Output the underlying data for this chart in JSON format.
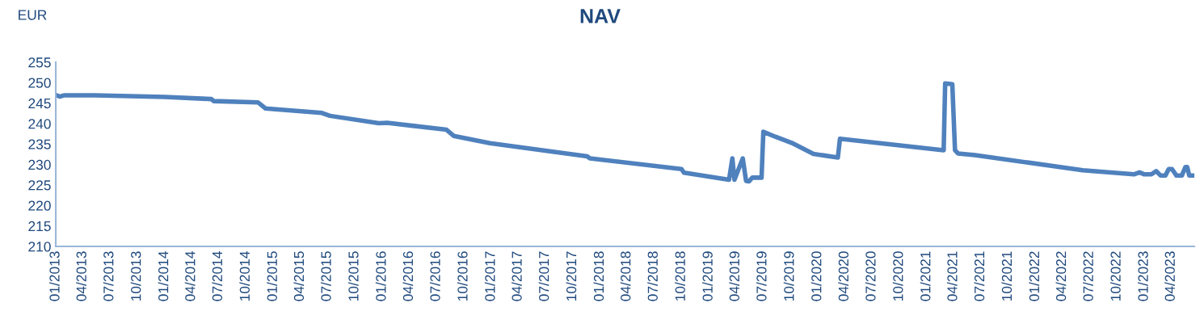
{
  "chart_data": {
    "type": "line",
    "title": "NAV",
    "ylabel": "EUR",
    "x": [
      "2013-01-01",
      "2013-01-14",
      "2013-01-28",
      "2013-05-14",
      "2014-01-01",
      "2014-06-07",
      "2014-06-15",
      "2014-11-10",
      "2014-12-06",
      "2015-06-13",
      "2015-07-10",
      "2015-12-21",
      "2016-01-18",
      "2016-08-04",
      "2016-08-28",
      "2016-12-28",
      "2017-11-19",
      "2017-11-28",
      "2018-10-01",
      "2018-10-10",
      "2019-03-10",
      "2019-03-21",
      "2019-03-28",
      "2019-04-25",
      "2019-05-06",
      "2019-05-16",
      "2019-05-27",
      "2019-06-27",
      "2019-07-03",
      "2019-08-12",
      "2019-10-06",
      "2019-12-18",
      "2020-03-09",
      "2020-03-16",
      "2021-02-27",
      "2021-03-04",
      "2021-03-28",
      "2021-04-06",
      "2021-04-16",
      "2021-06-12",
      "2022-06-09",
      "2022-11-27",
      "2022-12-16",
      "2023-01-01",
      "2023-01-25",
      "2023-02-10",
      "2023-02-25",
      "2023-03-13",
      "2023-03-24",
      "2023-04-04",
      "2023-04-19",
      "2023-05-07",
      "2023-05-19",
      "2023-05-25",
      "2023-06-01",
      "2023-06-15"
    ],
    "series": [
      {
        "color": "#4f81bd",
        "values": [
          247.0,
          246.6,
          246.9,
          246.9,
          246.5,
          246.0,
          245.5,
          245.2,
          243.7,
          242.6,
          241.9,
          240.1,
          240.2,
          238.5,
          237.0,
          235.2,
          232.0,
          231.5,
          228.9,
          228.0,
          226.3,
          231.5,
          226.3,
          231.5,
          226.0,
          225.9,
          226.8,
          226.8,
          238.0,
          236.8,
          235.3,
          232.6,
          231.7,
          236.3,
          233.5,
          249.8,
          249.6,
          233.5,
          232.7,
          232.3,
          228.6,
          227.6,
          228.1,
          227.6,
          227.6,
          228.4,
          227.3,
          227.3,
          228.9,
          228.9,
          227.3,
          227.3,
          229.4,
          229.4,
          227.3,
          227.3
        ]
      }
    ],
    "xlim": [
      "2013-01-01",
      "2023-06-18"
    ],
    "xticks": [
      {
        "value": "2013-01-01",
        "label": "01/2013"
      },
      {
        "value": "2013-04-01",
        "label": "04/2013"
      },
      {
        "value": "2013-07-01",
        "label": "07/2013"
      },
      {
        "value": "2013-10-01",
        "label": "10/2013"
      },
      {
        "value": "2014-01-01",
        "label": "01/2014"
      },
      {
        "value": "2014-04-01",
        "label": "04/2014"
      },
      {
        "value": "2014-07-01",
        "label": "07/2014"
      },
      {
        "value": "2014-10-01",
        "label": "10/2014"
      },
      {
        "value": "2015-01-01",
        "label": "01/2015"
      },
      {
        "value": "2015-04-01",
        "label": "04/2015"
      },
      {
        "value": "2015-07-01",
        "label": "07/2015"
      },
      {
        "value": "2015-10-01",
        "label": "10/2015"
      },
      {
        "value": "2016-01-01",
        "label": "01/2016"
      },
      {
        "value": "2016-04-01",
        "label": "04/2016"
      },
      {
        "value": "2016-07-01",
        "label": "07/2016"
      },
      {
        "value": "2016-10-01",
        "label": "10/2016"
      },
      {
        "value": "2017-01-01",
        "label": "01/2017"
      },
      {
        "value": "2017-04-01",
        "label": "04/2017"
      },
      {
        "value": "2017-07-01",
        "label": "07/2017"
      },
      {
        "value": "2017-10-01",
        "label": "10/2017"
      },
      {
        "value": "2018-01-01",
        "label": "01/2018"
      },
      {
        "value": "2018-04-01",
        "label": "04/2018"
      },
      {
        "value": "2018-07-01",
        "label": "07/2018"
      },
      {
        "value": "2018-10-01",
        "label": "10/2018"
      },
      {
        "value": "2019-01-01",
        "label": "01/2019"
      },
      {
        "value": "2019-04-01",
        "label": "04/2019"
      },
      {
        "value": "2019-07-01",
        "label": "07/2019"
      },
      {
        "value": "2019-10-01",
        "label": "10/2019"
      },
      {
        "value": "2020-01-01",
        "label": "01/2020"
      },
      {
        "value": "2020-04-01",
        "label": "04/2020"
      },
      {
        "value": "2020-07-01",
        "label": "07/2020"
      },
      {
        "value": "2020-10-01",
        "label": "10/2020"
      },
      {
        "value": "2021-01-01",
        "label": "01/2021"
      },
      {
        "value": "2021-04-01",
        "label": "04/2021"
      },
      {
        "value": "2021-07-01",
        "label": "07/2021"
      },
      {
        "value": "2021-10-01",
        "label": "10/2021"
      },
      {
        "value": "2022-01-01",
        "label": "01/2022"
      },
      {
        "value": "2022-04-01",
        "label": "04/2022"
      },
      {
        "value": "2022-07-01",
        "label": "07/2022"
      },
      {
        "value": "2022-10-01",
        "label": "10/2022"
      },
      {
        "value": "2023-01-01",
        "label": "01/2023"
      },
      {
        "value": "2023-04-01",
        "label": "04/2023"
      }
    ],
    "ylim": [
      210,
      255
    ],
    "yticks": [
      210,
      215,
      220,
      225,
      230,
      235,
      240,
      245,
      250,
      255
    ],
    "grid": false,
    "legend": false,
    "marker": "none",
    "line_style": "solid"
  }
}
